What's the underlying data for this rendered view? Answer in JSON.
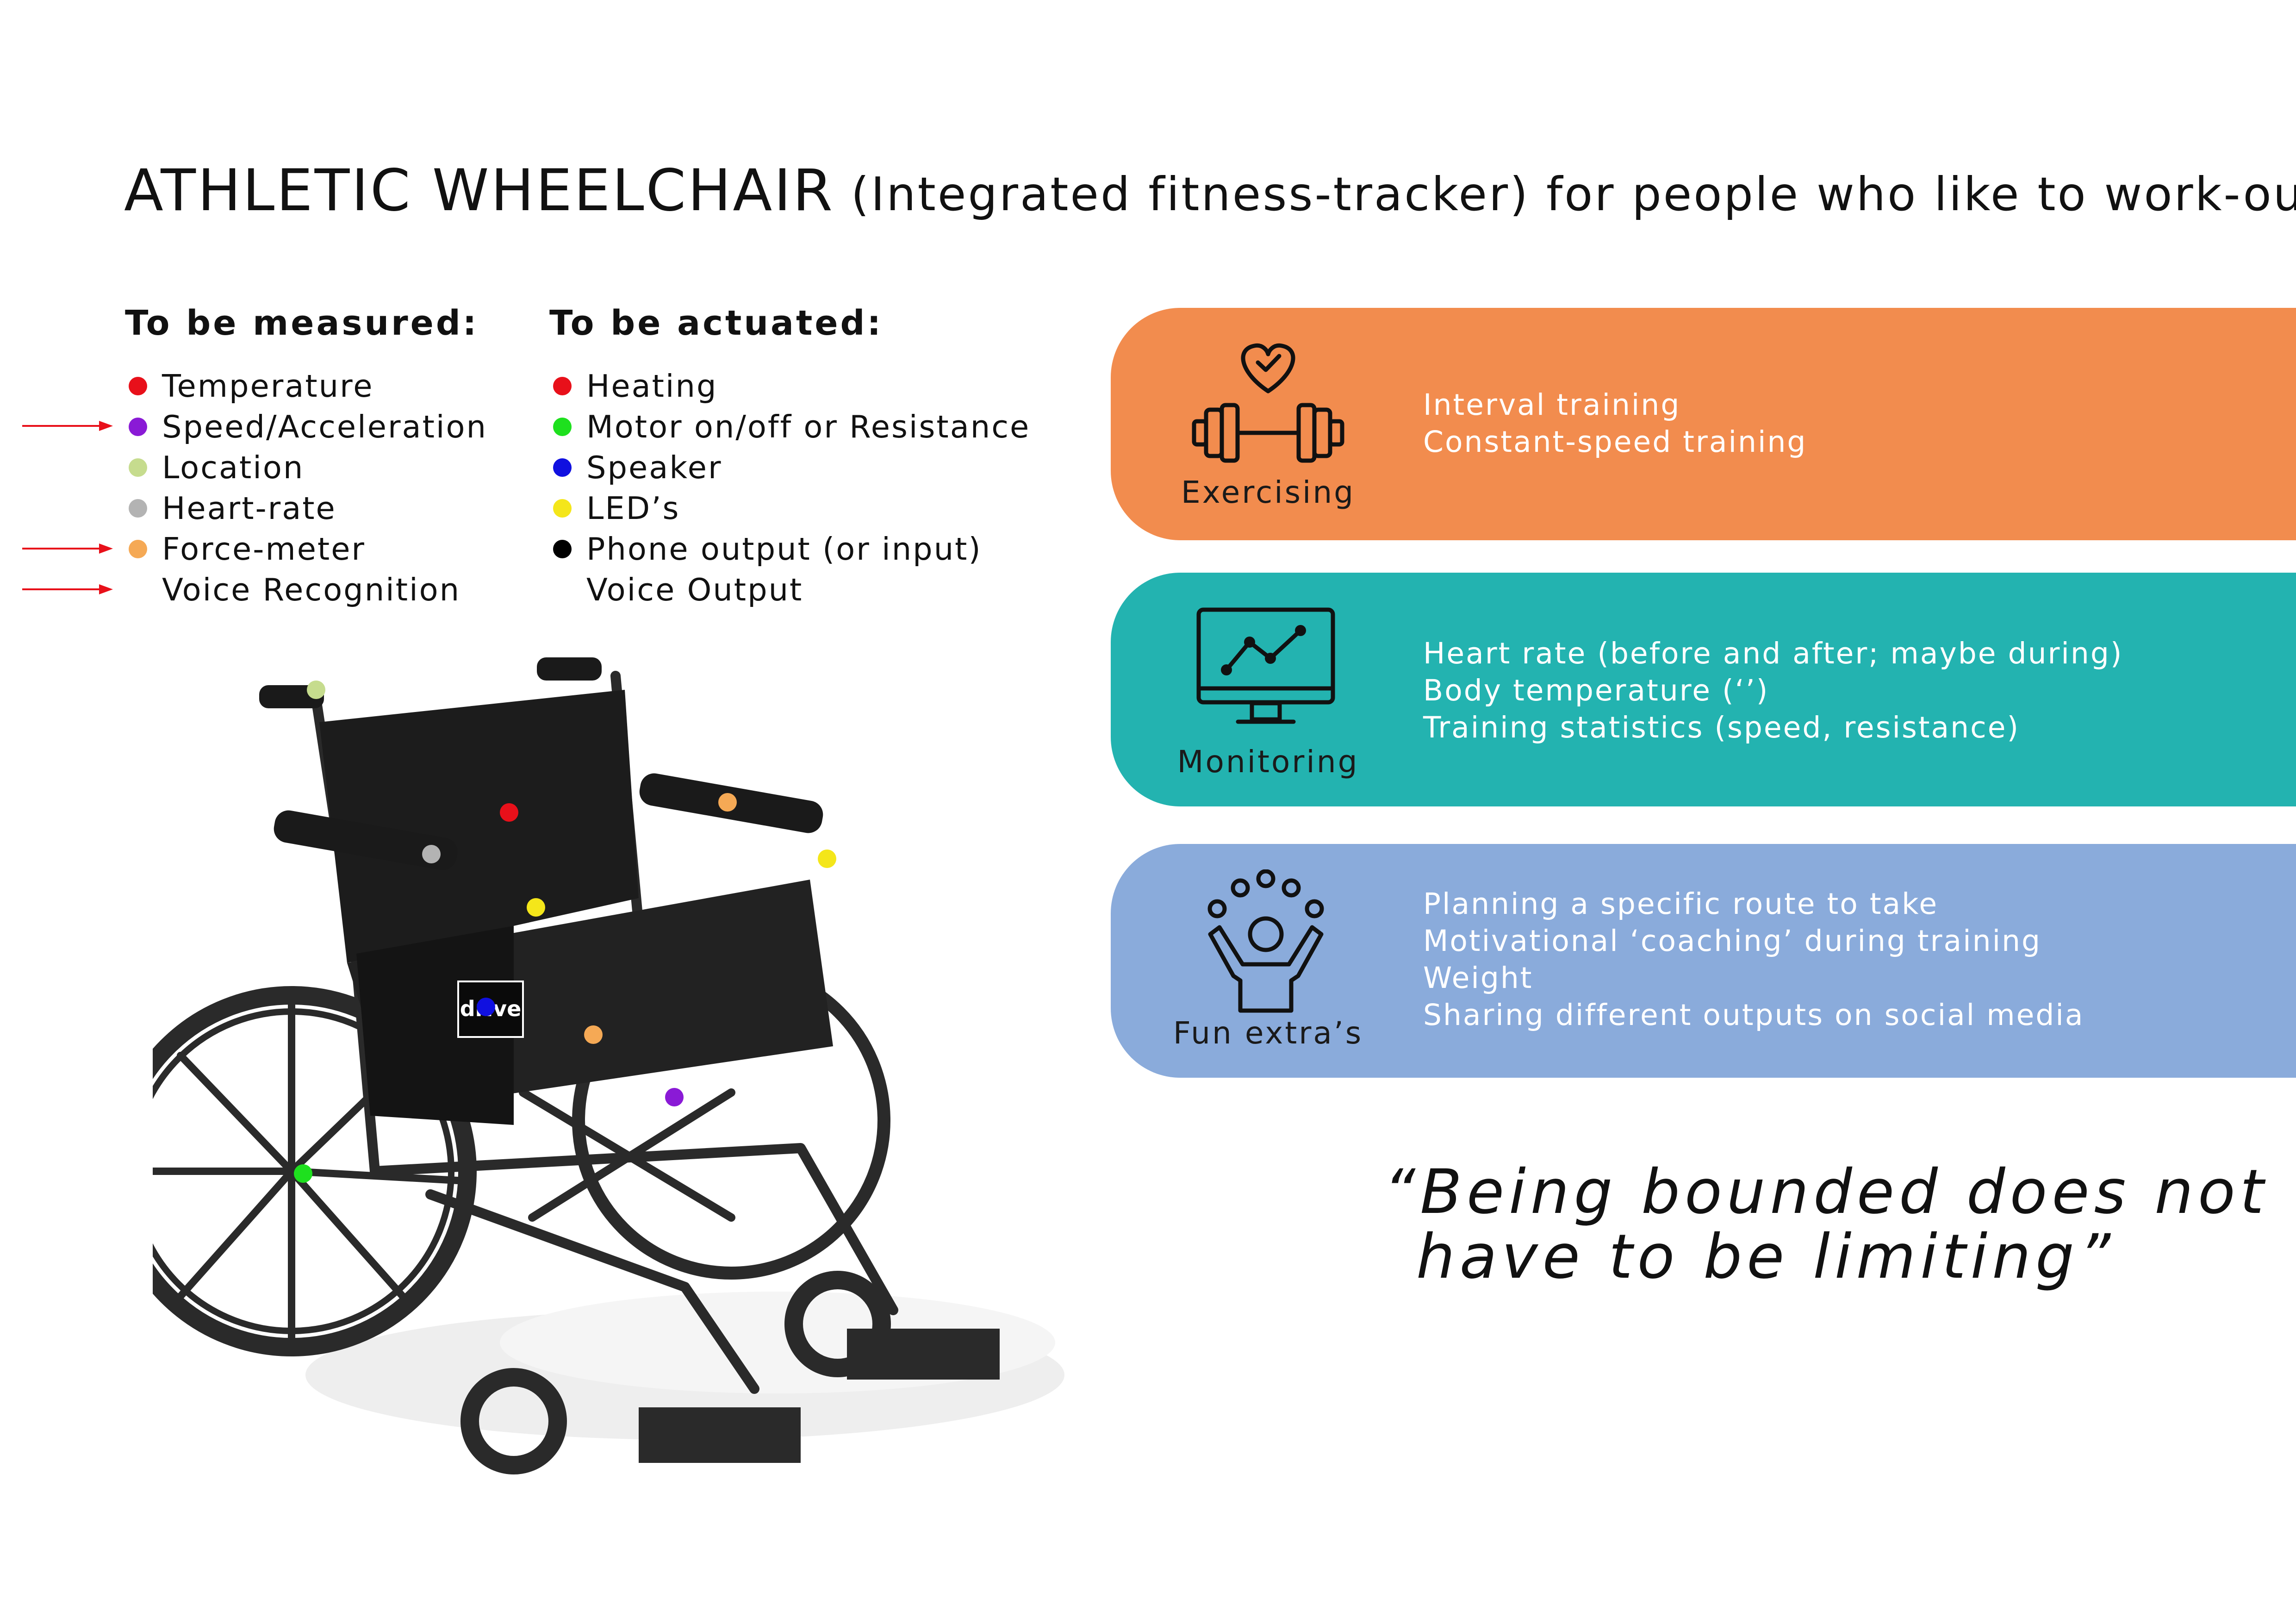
{
  "title": {
    "main": "ATHLETIC WHEELCHAIR",
    "sub": " (Integrated fitness-tracker) for people who like to work-out"
  },
  "measured": {
    "heading": "To be measured:",
    "items": [
      {
        "label": "Temperature",
        "color": "#e8101a",
        "arrow": false
      },
      {
        "label": "Speed/Acceleration",
        "color": "#8a1ad6",
        "arrow": true
      },
      {
        "label": "Location",
        "color": "#c6dc8e",
        "arrow": false
      },
      {
        "label": "Heart-rate",
        "color": "#b3b3b3",
        "arrow": false
      },
      {
        "label": "Force-meter",
        "color": "#f5a955",
        "arrow": true
      },
      {
        "label": "Voice Recognition",
        "color": "",
        "arrow": true
      }
    ]
  },
  "actuated": {
    "heading": "To be actuated:",
    "items": [
      {
        "label": "Heating",
        "color": "#e8101a"
      },
      {
        "label": "Motor on/off or Resistance",
        "color": "#1ee01e"
      },
      {
        "label": "Speaker",
        "color": "#1010e0"
      },
      {
        "label": "LED’s",
        "color": "#f4e61a"
      },
      {
        "label": "Phone output (or input)",
        "color": "#000000"
      },
      {
        "label": "Voice Output",
        "color": ""
      }
    ]
  },
  "arrow_color": "#e8101a",
  "cards": [
    {
      "label": "Exercising",
      "icon": "dumbbell-heart-icon",
      "color": "#f28c4e",
      "lines": [
        "Interval training",
        "Constant-speed training"
      ]
    },
    {
      "label": "Monitoring",
      "icon": "monitor-chart-icon",
      "color": "#23b3b0",
      "lines": [
        "Heart rate (before and after; maybe during)",
        "Body temperature (‘’)",
        "Training statistics (speed, resistance)"
      ]
    },
    {
      "label": "Fun extra’s",
      "icon": "juggling-person-icon",
      "color": "#8aabdb",
      "lines": [
        "Planning a specific route to take",
        "Motivational ‘coaching’ during training",
        "Weight",
        "Sharing different outputs on social media"
      ]
    }
  ],
  "quote": {
    "line1": "“Being bounded does not",
    "line2": "have to be limiting”"
  },
  "chair": {
    "logo": "drive",
    "image": "wheelchair-photo"
  }
}
